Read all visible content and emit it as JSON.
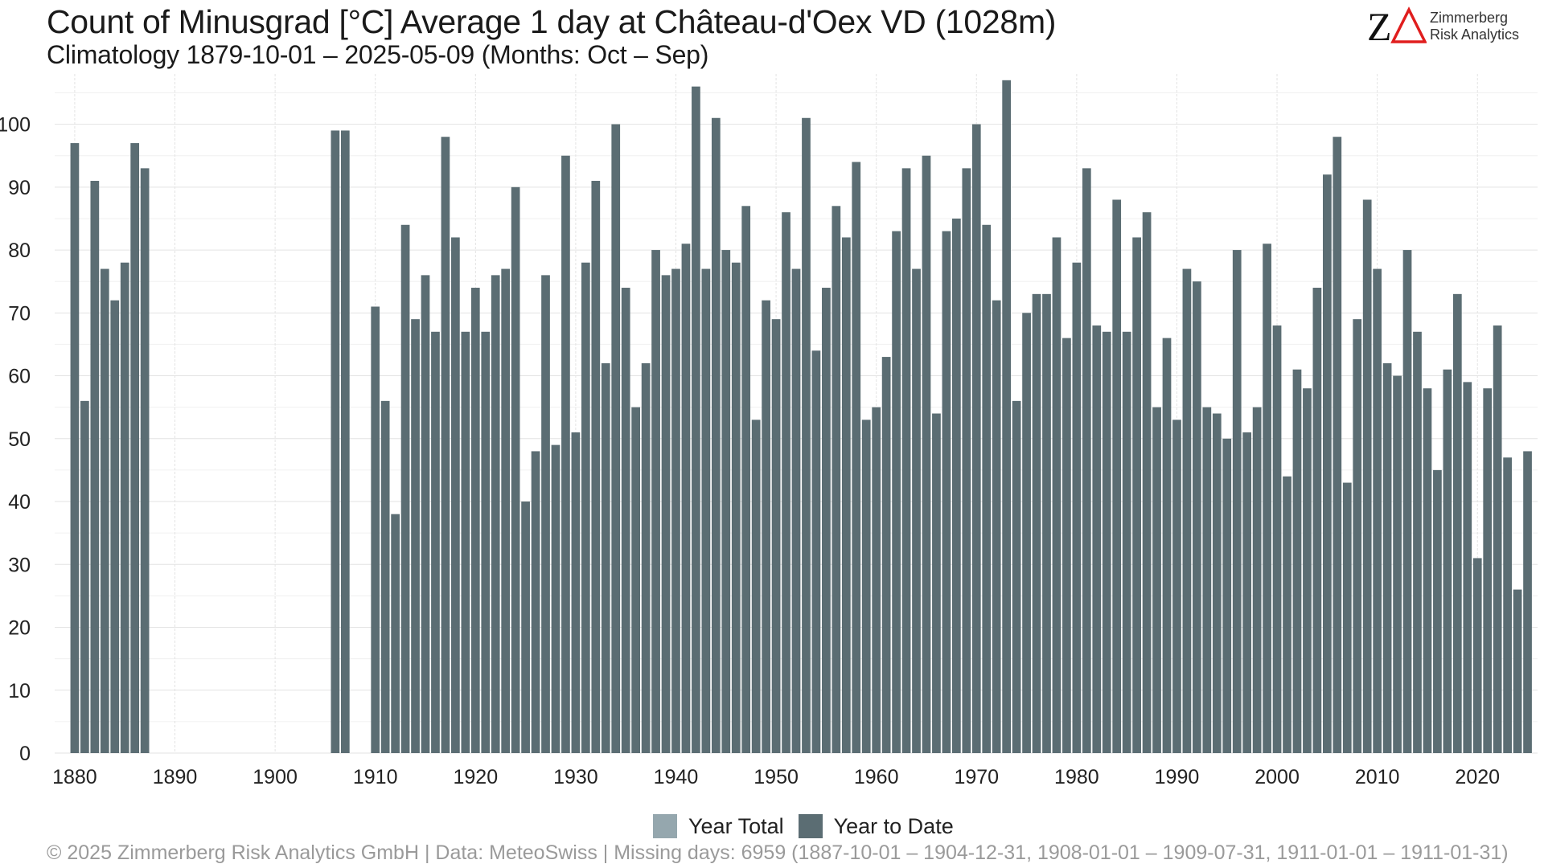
{
  "header": {
    "title": "Count of Minusgrad [°C] Average 1 day at Château-d'Oex  VD (1028m)",
    "subtitle": "Climatology 1879-10-01 – 2025-05-09 (Months: Oct – Sep)"
  },
  "logo": {
    "mark": "ZΔ",
    "line1": "Zimmerberg",
    "line2": "Risk Analytics",
    "colors": {
      "z": "#111111",
      "delta": "#e01e1e"
    }
  },
  "legend": {
    "items": [
      {
        "label": "Year Total",
        "color": "#95a7ae"
      },
      {
        "label": "Year to Date",
        "color": "#5b6d73"
      }
    ]
  },
  "footer": {
    "text": "©  2025 Zimmerberg Risk Analytics GmbH | Data: MeteoSwiss | Missing days: 6959 (1887-10-01 – 1904-12-31, 1908-01-01 – 1909-07-31, 1911-01-01 – 1911-01-31)"
  },
  "colors": {
    "bar": "#5b6d73",
    "grid": "#e3e3e3",
    "axis_text": "#222222"
  },
  "chart_data": {
    "type": "bar",
    "x": [
      1880,
      1881,
      1882,
      1883,
      1884,
      1885,
      1886,
      1887,
      1906,
      1907,
      1910,
      1911,
      1912,
      1913,
      1914,
      1915,
      1916,
      1917,
      1918,
      1919,
      1920,
      1921,
      1922,
      1923,
      1924,
      1925,
      1926,
      1927,
      1928,
      1929,
      1930,
      1931,
      1932,
      1933,
      1934,
      1935,
      1936,
      1937,
      1938,
      1939,
      1940,
      1941,
      1942,
      1943,
      1944,
      1945,
      1946,
      1947,
      1948,
      1949,
      1950,
      1951,
      1952,
      1953,
      1954,
      1955,
      1956,
      1957,
      1958,
      1959,
      1960,
      1961,
      1962,
      1963,
      1964,
      1965,
      1966,
      1967,
      1968,
      1969,
      1970,
      1971,
      1972,
      1973,
      1974,
      1975,
      1976,
      1977,
      1978,
      1979,
      1980,
      1981,
      1982,
      1983,
      1984,
      1985,
      1986,
      1987,
      1988,
      1989,
      1990,
      1991,
      1992,
      1993,
      1994,
      1995,
      1996,
      1997,
      1998,
      1999,
      2000,
      2001,
      2002,
      2003,
      2004,
      2005,
      2006,
      2007,
      2008,
      2009,
      2010,
      2011,
      2012,
      2013,
      2014,
      2015,
      2016,
      2017,
      2018,
      2019,
      2020,
      2021,
      2022,
      2023,
      2024,
      2025
    ],
    "series": [
      {
        "name": "Year to Date",
        "values": [
          97,
          56,
          91,
          77,
          72,
          78,
          97,
          93,
          99,
          99,
          71,
          56,
          38,
          84,
          69,
          76,
          67,
          98,
          82,
          67,
          74,
          67,
          76,
          77,
          90,
          40,
          48,
          76,
          49,
          95,
          51,
          78,
          91,
          62,
          100,
          74,
          55,
          62,
          80,
          76,
          77,
          81,
          106,
          77,
          101,
          80,
          78,
          87,
          53,
          72,
          69,
          86,
          77,
          101,
          64,
          74,
          87,
          82,
          94,
          53,
          55,
          63,
          83,
          93,
          77,
          95,
          54,
          83,
          85,
          93,
          100,
          84,
          72,
          107,
          56,
          70,
          73,
          73,
          82,
          66,
          78,
          93,
          68,
          67,
          88,
          67,
          82,
          86,
          55,
          66,
          53,
          77,
          75,
          55,
          54,
          50,
          80,
          51,
          55,
          81,
          68,
          44,
          61,
          58,
          74,
          92,
          98,
          43,
          69,
          88,
          77,
          62,
          60,
          80,
          67,
          58,
          45,
          61,
          73,
          59,
          31,
          58,
          68,
          47,
          26,
          48
        ]
      }
    ],
    "x_ticks": [
      1880,
      1890,
      1900,
      1910,
      1920,
      1930,
      1940,
      1950,
      1960,
      1970,
      1980,
      1990,
      2000,
      2010,
      2020
    ],
    "y_ticks": [
      0,
      10,
      20,
      30,
      40,
      50,
      60,
      70,
      80,
      90,
      100
    ],
    "xlim": [
      1878,
      2026
    ],
    "ylim": [
      0,
      108
    ],
    "grid": true,
    "legend_position": "bottom"
  }
}
